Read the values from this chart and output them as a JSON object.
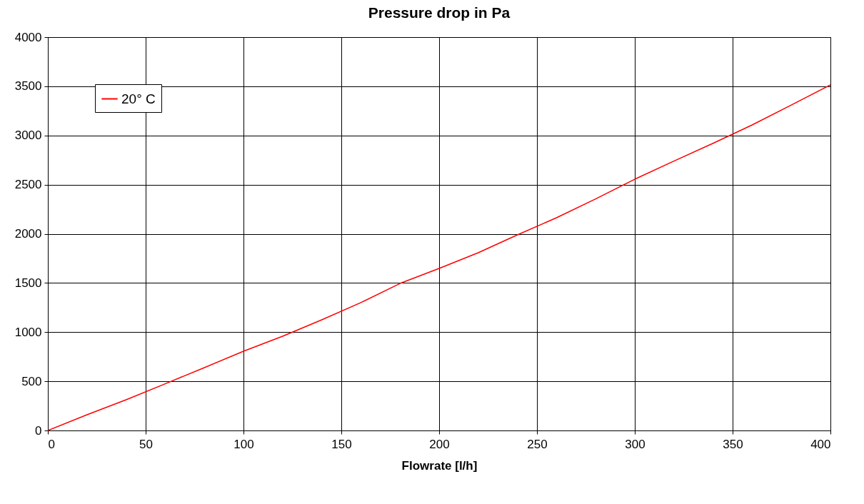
{
  "chart_data": {
    "type": "line",
    "title": "Pressure drop in Pa",
    "xlabel": "Flowrate [l/h]",
    "x": [
      0,
      20,
      40,
      60,
      80,
      100,
      120,
      140,
      160,
      180,
      200,
      220,
      240,
      260,
      280,
      300,
      320,
      340,
      360,
      380,
      400
    ],
    "series": [
      {
        "name": "20° C",
        "color": "#ff0000",
        "values": [
          0,
          160,
          312,
          475,
          639,
          806,
          958,
          1125,
          1300,
          1495,
          1648,
          1808,
          1989,
          2163,
          2355,
          2555,
          2740,
          2920,
          3107,
          3310,
          3514
        ]
      }
    ],
    "xlim": [
      0,
      400
    ],
    "xticks": [
      0,
      50,
      100,
      150,
      200,
      250,
      300,
      350,
      400
    ],
    "ylim": [
      0,
      4000
    ],
    "yticks": [
      0,
      500,
      1000,
      1500,
      2000,
      2500,
      3000,
      3500,
      4000
    ],
    "grid": true,
    "legend": "top left",
    "marker": "none",
    "line_style": "solid"
  }
}
